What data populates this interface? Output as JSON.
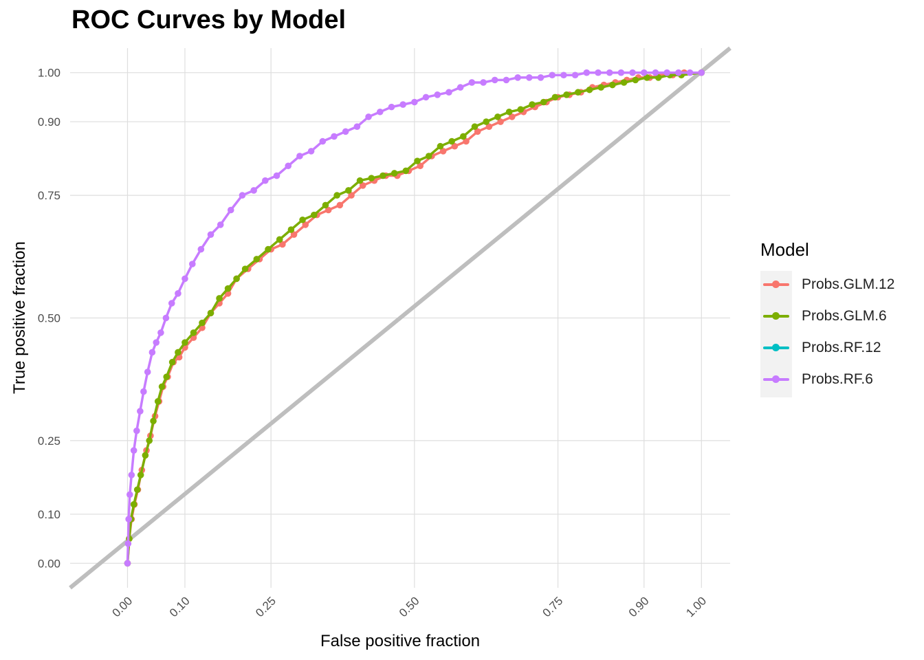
{
  "chart_data": {
    "type": "line",
    "title": "ROC Curves by Model",
    "xlabel": "False positive fraction",
    "ylabel": "True positive fraction",
    "xlim": [
      -0.1,
      1.05
    ],
    "ylim": [
      -0.05,
      1.05
    ],
    "x_ticks": [
      0.0,
      0.1,
      0.25,
      0.5,
      0.75,
      0.9,
      1.0
    ],
    "x_tick_labels": [
      "0.00",
      "0.10",
      "0.25",
      "0.50",
      "0.75",
      "0.90",
      "1.00"
    ],
    "y_ticks": [
      0.0,
      0.1,
      0.25,
      0.5,
      0.75,
      0.9,
      1.0
    ],
    "y_tick_labels": [
      "0.00",
      "0.10",
      "0.25",
      "0.50",
      "0.75",
      "0.90",
      "1.00"
    ],
    "grid": true,
    "reference_line": {
      "from": [
        -0.1,
        -0.05
      ],
      "to": [
        1.05,
        1.05
      ],
      "color": "#bebebe"
    },
    "legend": {
      "title": "Model",
      "position": "right"
    },
    "series": [
      {
        "name": "Probs.GLM.12",
        "color": "#F8766D",
        "points": [
          [
            0,
            0
          ],
          [
            0.003,
            0.05
          ],
          [
            0.007,
            0.09
          ],
          [
            0.012,
            0.12
          ],
          [
            0.018,
            0.15
          ],
          [
            0.025,
            0.19
          ],
          [
            0.033,
            0.23
          ],
          [
            0.04,
            0.26
          ],
          [
            0.048,
            0.3
          ],
          [
            0.055,
            0.33
          ],
          [
            0.062,
            0.36
          ],
          [
            0.07,
            0.38
          ],
          [
            0.08,
            0.41
          ],
          [
            0.09,
            0.42
          ],
          [
            0.1,
            0.44
          ],
          [
            0.115,
            0.46
          ],
          [
            0.13,
            0.48
          ],
          [
            0.145,
            0.51
          ],
          [
            0.16,
            0.53
          ],
          [
            0.175,
            0.55
          ],
          [
            0.19,
            0.58
          ],
          [
            0.21,
            0.6
          ],
          [
            0.23,
            0.62
          ],
          [
            0.25,
            0.64
          ],
          [
            0.27,
            0.65
          ],
          [
            0.29,
            0.67
          ],
          [
            0.31,
            0.69
          ],
          [
            0.33,
            0.71
          ],
          [
            0.35,
            0.72
          ],
          [
            0.37,
            0.73
          ],
          [
            0.39,
            0.75
          ],
          [
            0.41,
            0.77
          ],
          [
            0.43,
            0.78
          ],
          [
            0.45,
            0.79
          ],
          [
            0.47,
            0.79
          ],
          [
            0.49,
            0.8
          ],
          [
            0.51,
            0.81
          ],
          [
            0.53,
            0.83
          ],
          [
            0.55,
            0.84
          ],
          [
            0.57,
            0.85
          ],
          [
            0.59,
            0.86
          ],
          [
            0.61,
            0.88
          ],
          [
            0.63,
            0.89
          ],
          [
            0.65,
            0.9
          ],
          [
            0.67,
            0.91
          ],
          [
            0.69,
            0.92
          ],
          [
            0.71,
            0.93
          ],
          [
            0.73,
            0.94
          ],
          [
            0.75,
            0.95
          ],
          [
            0.77,
            0.955
          ],
          [
            0.79,
            0.96
          ],
          [
            0.81,
            0.97
          ],
          [
            0.83,
            0.975
          ],
          [
            0.85,
            0.98
          ],
          [
            0.87,
            0.985
          ],
          [
            0.89,
            0.99
          ],
          [
            0.91,
            0.99
          ],
          [
            0.93,
            0.995
          ],
          [
            0.95,
            0.995
          ],
          [
            0.97,
            1.0
          ],
          [
            1.0,
            1.0
          ]
        ]
      },
      {
        "name": "Probs.GLM.6",
        "color": "#7CAE00",
        "points": [
          [
            0,
            0
          ],
          [
            0.003,
            0.05
          ],
          [
            0.006,
            0.09
          ],
          [
            0.011,
            0.12
          ],
          [
            0.017,
            0.15
          ],
          [
            0.023,
            0.18
          ],
          [
            0.031,
            0.22
          ],
          [
            0.038,
            0.25
          ],
          [
            0.045,
            0.29
          ],
          [
            0.053,
            0.33
          ],
          [
            0.06,
            0.36
          ],
          [
            0.068,
            0.38
          ],
          [
            0.078,
            0.41
          ],
          [
            0.088,
            0.43
          ],
          [
            0.1,
            0.45
          ],
          [
            0.115,
            0.47
          ],
          [
            0.13,
            0.49
          ],
          [
            0.145,
            0.51
          ],
          [
            0.16,
            0.54
          ],
          [
            0.175,
            0.56
          ],
          [
            0.19,
            0.58
          ],
          [
            0.205,
            0.6
          ],
          [
            0.225,
            0.62
          ],
          [
            0.245,
            0.64
          ],
          [
            0.265,
            0.66
          ],
          [
            0.285,
            0.68
          ],
          [
            0.305,
            0.7
          ],
          [
            0.325,
            0.71
          ],
          [
            0.345,
            0.73
          ],
          [
            0.365,
            0.75
          ],
          [
            0.385,
            0.76
          ],
          [
            0.405,
            0.78
          ],
          [
            0.425,
            0.785
          ],
          [
            0.445,
            0.79
          ],
          [
            0.465,
            0.795
          ],
          [
            0.485,
            0.8
          ],
          [
            0.505,
            0.82
          ],
          [
            0.525,
            0.83
          ],
          [
            0.545,
            0.85
          ],
          [
            0.565,
            0.86
          ],
          [
            0.585,
            0.87
          ],
          [
            0.605,
            0.89
          ],
          [
            0.625,
            0.9
          ],
          [
            0.645,
            0.91
          ],
          [
            0.665,
            0.92
          ],
          [
            0.685,
            0.925
          ],
          [
            0.705,
            0.935
          ],
          [
            0.725,
            0.94
          ],
          [
            0.745,
            0.95
          ],
          [
            0.765,
            0.955
          ],
          [
            0.785,
            0.96
          ],
          [
            0.805,
            0.965
          ],
          [
            0.825,
            0.97
          ],
          [
            0.845,
            0.975
          ],
          [
            0.865,
            0.98
          ],
          [
            0.885,
            0.985
          ],
          [
            0.905,
            0.99
          ],
          [
            0.925,
            0.99
          ],
          [
            0.945,
            0.995
          ],
          [
            0.965,
            0.995
          ],
          [
            1.0,
            1.0
          ]
        ]
      },
      {
        "name": "Probs.RF.12",
        "color": "#00BFC4",
        "points": []
      },
      {
        "name": "Probs.RF.6",
        "color": "#C77CFF",
        "points": [
          [
            0,
            0
          ],
          [
            0.001,
            0.04
          ],
          [
            0.002,
            0.09
          ],
          [
            0.004,
            0.14
          ],
          [
            0.007,
            0.18
          ],
          [
            0.011,
            0.23
          ],
          [
            0.016,
            0.27
          ],
          [
            0.022,
            0.31
          ],
          [
            0.028,
            0.35
          ],
          [
            0.035,
            0.39
          ],
          [
            0.043,
            0.43
          ],
          [
            0.05,
            0.45
          ],
          [
            0.058,
            0.47
          ],
          [
            0.067,
            0.5
          ],
          [
            0.077,
            0.53
          ],
          [
            0.088,
            0.55
          ],
          [
            0.1,
            0.58
          ],
          [
            0.113,
            0.61
          ],
          [
            0.128,
            0.64
          ],
          [
            0.145,
            0.67
          ],
          [
            0.162,
            0.69
          ],
          [
            0.18,
            0.72
          ],
          [
            0.2,
            0.75
          ],
          [
            0.22,
            0.76
          ],
          [
            0.24,
            0.78
          ],
          [
            0.26,
            0.79
          ],
          [
            0.28,
            0.81
          ],
          [
            0.3,
            0.83
          ],
          [
            0.32,
            0.84
          ],
          [
            0.34,
            0.86
          ],
          [
            0.36,
            0.87
          ],
          [
            0.38,
            0.88
          ],
          [
            0.4,
            0.89
          ],
          [
            0.42,
            0.91
          ],
          [
            0.44,
            0.92
          ],
          [
            0.46,
            0.93
          ],
          [
            0.48,
            0.935
          ],
          [
            0.5,
            0.94
          ],
          [
            0.52,
            0.95
          ],
          [
            0.54,
            0.955
          ],
          [
            0.56,
            0.96
          ],
          [
            0.58,
            0.97
          ],
          [
            0.6,
            0.98
          ],
          [
            0.62,
            0.98
          ],
          [
            0.64,
            0.985
          ],
          [
            0.66,
            0.985
          ],
          [
            0.68,
            0.99
          ],
          [
            0.7,
            0.99
          ],
          [
            0.72,
            0.99
          ],
          [
            0.74,
            0.995
          ],
          [
            0.76,
            0.995
          ],
          [
            0.78,
            0.995
          ],
          [
            0.8,
            1.0
          ],
          [
            0.82,
            1.0
          ],
          [
            0.84,
            1.0
          ],
          [
            0.86,
            1.0
          ],
          [
            0.88,
            1.0
          ],
          [
            0.9,
            1.0
          ],
          [
            0.92,
            1.0
          ],
          [
            0.94,
            1.0
          ],
          [
            0.96,
            1.0
          ],
          [
            0.98,
            1.0
          ],
          [
            1.0,
            1.0
          ]
        ]
      }
    ]
  }
}
